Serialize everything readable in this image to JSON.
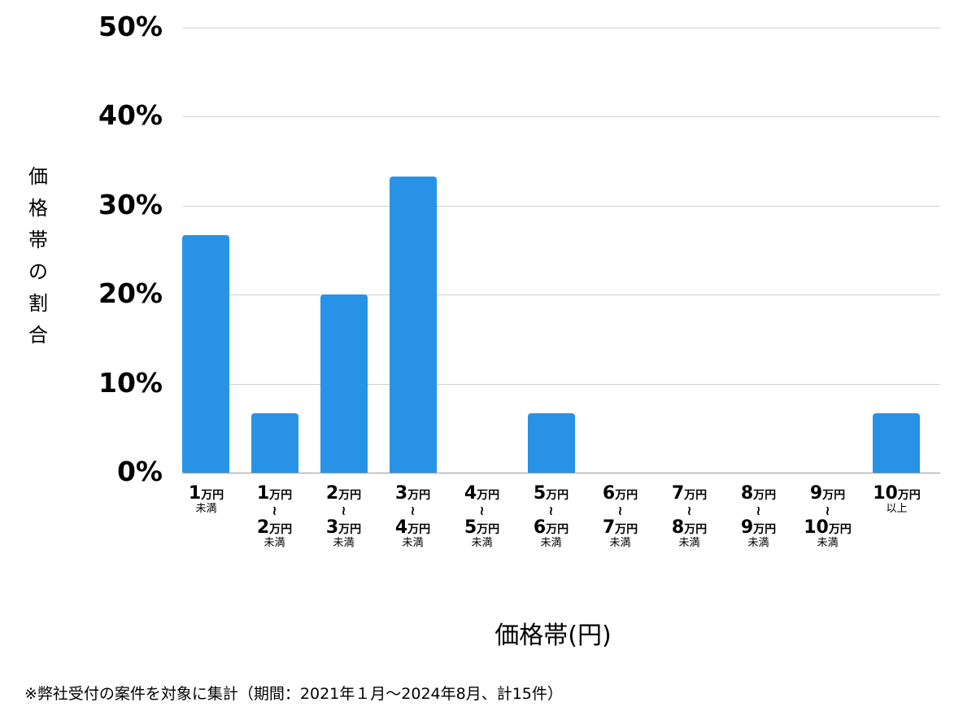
{
  "chart_data": {
    "type": "bar",
    "title": "",
    "xlabel": "価格帯(円)",
    "ylabel": "価格帯の割合",
    "ylim": [
      0,
      50
    ],
    "yticks": [
      "0%",
      "10%",
      "20%",
      "30%",
      "40%",
      "50%"
    ],
    "grid": true,
    "legend": null,
    "categories": [
      "1万円未満",
      "1万円〜2万円未満",
      "2万円〜3万円未満",
      "3万円〜4万円未満",
      "4万円〜5万円未満",
      "5万円〜6万円未満",
      "6万円〜7万円未満",
      "7万円〜8万円未満",
      "8万円〜9万円未満",
      "9万円〜10万円未満",
      "10万円以上"
    ],
    "values": [
      26.7,
      6.7,
      20.0,
      33.3,
      0,
      6.7,
      0,
      0,
      0,
      0,
      6.7
    ],
    "color": "#2893e6",
    "annotation": "※弊社受付の案件を対象に集計（期間：2021年１月〜2024年8月、計15件）"
  },
  "axis": {
    "ylabel_chars": [
      "価",
      "格",
      "帯",
      "の",
      "割",
      "合"
    ],
    "xlabel": "価格帯(円)",
    "yticks": [
      {
        "label": "50%",
        "value": 50
      },
      {
        "label": "40%",
        "value": 40
      },
      {
        "label": "30%",
        "value": 30
      },
      {
        "label": "20%",
        "value": 20
      },
      {
        "label": "10%",
        "value": 10
      },
      {
        "label": "0%",
        "value": 0
      }
    ]
  },
  "xlabels": [
    {
      "from": "1",
      "to": null,
      "suffix": "未満"
    },
    {
      "from": "1",
      "to": "2",
      "suffix": "未満"
    },
    {
      "from": "2",
      "to": "3",
      "suffix": "未満"
    },
    {
      "from": "3",
      "to": "4",
      "suffix": "未満"
    },
    {
      "from": "4",
      "to": "5",
      "suffix": "未満"
    },
    {
      "from": "5",
      "to": "6",
      "suffix": "未満"
    },
    {
      "from": "6",
      "to": "7",
      "suffix": "未満"
    },
    {
      "from": "7",
      "to": "8",
      "suffix": "未満"
    },
    {
      "from": "8",
      "to": "9",
      "suffix": "未満"
    },
    {
      "from": "9",
      "to": "10",
      "suffix": "未満"
    },
    {
      "from": "10",
      "to": null,
      "suffix": "以上"
    }
  ],
  "unit": "万円",
  "tilde": "≀",
  "footnote": "※弊社受付の案件を対象に集計（期間：2021年１月〜2024年8月、計15件）"
}
